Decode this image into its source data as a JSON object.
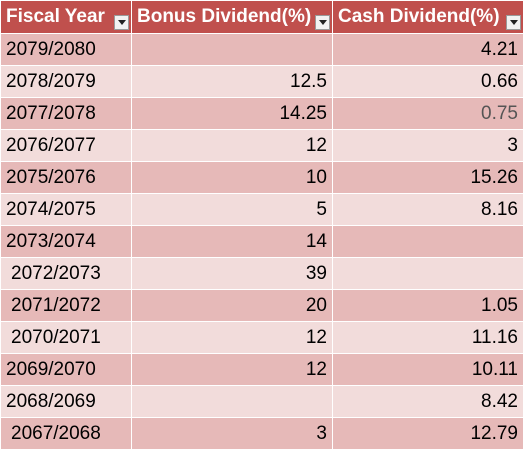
{
  "header": {
    "fiscal_year": "Fiscal Year",
    "bonus": "Bonus Dividend(%)",
    "cash": "Cash Dividend(%)"
  },
  "icons": {
    "filter": "dropdown-filter-icon"
  },
  "colors": {
    "header_bg": "#c0504d",
    "row_dark": "#e6b9b8",
    "row_light": "#f2dcdb"
  },
  "rows": [
    {
      "year": "2079/2080",
      "bonus": "",
      "cash": "4.21"
    },
    {
      "year": "2078/2079",
      "bonus": "12.5",
      "cash": "0.66"
    },
    {
      "year": "2077/2078",
      "bonus": "14.25",
      "cash": "0.75"
    },
    {
      "year": "2076/2077",
      "bonus": "12",
      "cash": "3"
    },
    {
      "year": "2075/2076",
      "bonus": "10",
      "cash": "15.26"
    },
    {
      "year": "2074/2075",
      "bonus": "5",
      "cash": "8.16"
    },
    {
      "year": "2073/2074",
      "bonus": "14",
      "cash": ""
    },
    {
      "year": "2072/2073",
      "bonus": "39",
      "cash": ""
    },
    {
      "year": "2071/2072",
      "bonus": "20",
      "cash": "1.05"
    },
    {
      "year": "2070/2071",
      "bonus": "12",
      "cash": "11.16"
    },
    {
      "year": "2069/2070",
      "bonus": "12",
      "cash": "10.11"
    },
    {
      "year": "2068/2069",
      "bonus": "",
      "cash": "8.42"
    },
    {
      "year": "2067/2068",
      "bonus": "3",
      "cash": "12.79"
    }
  ]
}
